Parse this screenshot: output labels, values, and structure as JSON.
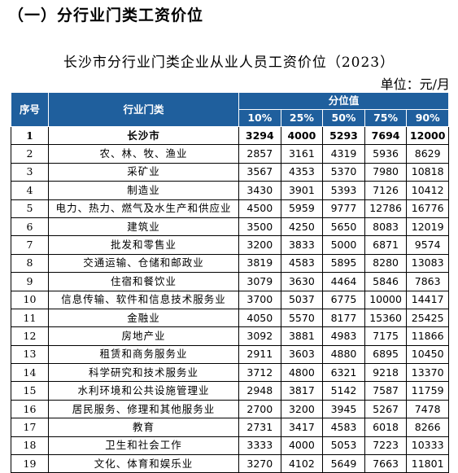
{
  "section_title": "（一）分行业门类工资价位",
  "table_title": "长沙市分行业门类企业从业人员工资价位（2023）",
  "unit": "单位：元/月",
  "headers": {
    "index": "序号",
    "industry": "行业门类",
    "group": "分位值",
    "percentiles": [
      "10%",
      "25%",
      "50%",
      "75%",
      "90%"
    ]
  },
  "rows": [
    {
      "idx": "1",
      "industry": "长沙市",
      "values": [
        "3294",
        "4000",
        "5293",
        "7694",
        "12000"
      ]
    },
    {
      "idx": "2",
      "industry": "农、林、牧、渔业",
      "values": [
        "2857",
        "3161",
        "4319",
        "5936",
        "8629"
      ]
    },
    {
      "idx": "3",
      "industry": "采矿业",
      "values": [
        "3567",
        "4353",
        "5370",
        "7980",
        "10818"
      ]
    },
    {
      "idx": "4",
      "industry": "制造业",
      "values": [
        "3430",
        "3901",
        "5393",
        "7126",
        "10412"
      ]
    },
    {
      "idx": "5",
      "industry": "电力、热力、燃气及水生产和供应业",
      "values": [
        "4500",
        "5959",
        "9777",
        "12786",
        "16776"
      ]
    },
    {
      "idx": "6",
      "industry": "建筑业",
      "values": [
        "3500",
        "4250",
        "5650",
        "8083",
        "12019"
      ]
    },
    {
      "idx": "7",
      "industry": "批发和零售业",
      "values": [
        "3200",
        "3833",
        "5000",
        "6871",
        "9574"
      ]
    },
    {
      "idx": "8",
      "industry": "交通运输、仓储和邮政业",
      "values": [
        "3819",
        "4583",
        "5895",
        "8280",
        "13083"
      ]
    },
    {
      "idx": "9",
      "industry": "住宿和餐饮业",
      "values": [
        "3079",
        "3630",
        "4464",
        "5846",
        "7863"
      ]
    },
    {
      "idx": "10",
      "industry": "信息传输、软件和信息技术服务业",
      "values": [
        "3700",
        "5037",
        "6775",
        "10000",
        "14417"
      ]
    },
    {
      "idx": "11",
      "industry": "金融业",
      "values": [
        "4050",
        "5570",
        "8177",
        "15360",
        "25425"
      ]
    },
    {
      "idx": "12",
      "industry": "房地产业",
      "values": [
        "3092",
        "3881",
        "4983",
        "7175",
        "11866"
      ]
    },
    {
      "idx": "13",
      "industry": "租赁和商务服务业",
      "values": [
        "2911",
        "3603",
        "4880",
        "6895",
        "10450"
      ]
    },
    {
      "idx": "14",
      "industry": "科学研究和技术服务业",
      "values": [
        "3712",
        "4800",
        "6321",
        "9218",
        "13370"
      ]
    },
    {
      "idx": "15",
      "industry": "水利环境和公共设施管理业",
      "values": [
        "2948",
        "3817",
        "5142",
        "7587",
        "11759"
      ]
    },
    {
      "idx": "16",
      "industry": "居民服务、修理和其他服务业",
      "values": [
        "2700",
        "3200",
        "3945",
        "5267",
        "7478"
      ]
    },
    {
      "idx": "17",
      "industry": "教育",
      "values": [
        "2731",
        "3417",
        "4583",
        "6018",
        "8266"
      ]
    },
    {
      "idx": "18",
      "industry": "卫生和社会工作",
      "values": [
        "3333",
        "4000",
        "5053",
        "7223",
        "10333"
      ]
    },
    {
      "idx": "19",
      "industry": "文化、体育和娱乐业",
      "values": [
        "3270",
        "4102",
        "5649",
        "7663",
        "11801"
      ]
    }
  ]
}
